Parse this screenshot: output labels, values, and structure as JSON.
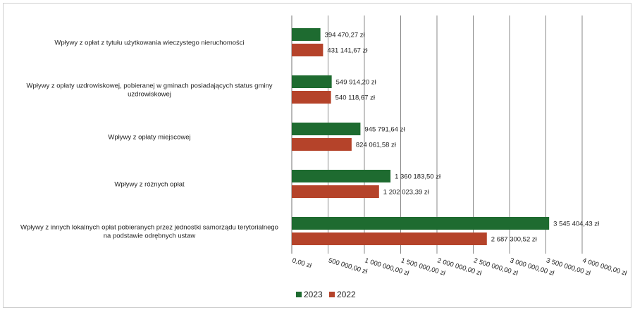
{
  "chart_data": {
    "type": "bar",
    "orientation": "horizontal",
    "categories": [
      [
        "Wpływy z opłat z tytułu użytkowania wieczystego nieruchomości"
      ],
      [
        "Wpływy z opłaty uzdrowiskowej, pobieranej w gminach posiadających status gminy",
        "uzdrowiskowej"
      ],
      [
        "Wpływy z opłaty miejscowej"
      ],
      [
        "Wpływy z różnych opłat"
      ],
      [
        "Wpływy z innych lokalnych opłat pobieranych przez jednostki samorządu terytorialnego",
        "na podstawie odrębnych ustaw"
      ]
    ],
    "series": [
      {
        "name": "2023",
        "color": "#1e6b30",
        "values": [
          394470.27,
          549914.2,
          945791.64,
          1360183.5,
          3545404.43
        ],
        "labels": [
          "394 470,27 zł",
          "549 914,20 zł",
          "945 791,64 zł",
          "1 360 183,50 zł",
          "3 545 404,43 zł"
        ]
      },
      {
        "name": "2022",
        "color": "#b5432a",
        "values": [
          431141.67,
          540118.67,
          824061.58,
          1202023.39,
          2687300.52
        ],
        "labels": [
          "431 141,67 zł",
          "540 118,67 zł",
          "824 061,58 zł",
          "1 202 023,39 zł",
          "2 687 300,52 zł"
        ]
      }
    ],
    "xlim": [
      0,
      4000000
    ],
    "xticks": [
      0,
      500000,
      1000000,
      1500000,
      2000000,
      2500000,
      3000000,
      3500000,
      4000000
    ],
    "xtick_labels": [
      "0,00 zł",
      "500 000,00 zł",
      "1 000 000,00 zł",
      "1 500 000,00 zł",
      "2 000 000,00 zł",
      "2 500 000,00 zł",
      "3 000 000,00 zł",
      "3 500 000,00 zł",
      "4 000 000,00 zł"
    ],
    "grid": true,
    "legend": "bottom-center"
  }
}
